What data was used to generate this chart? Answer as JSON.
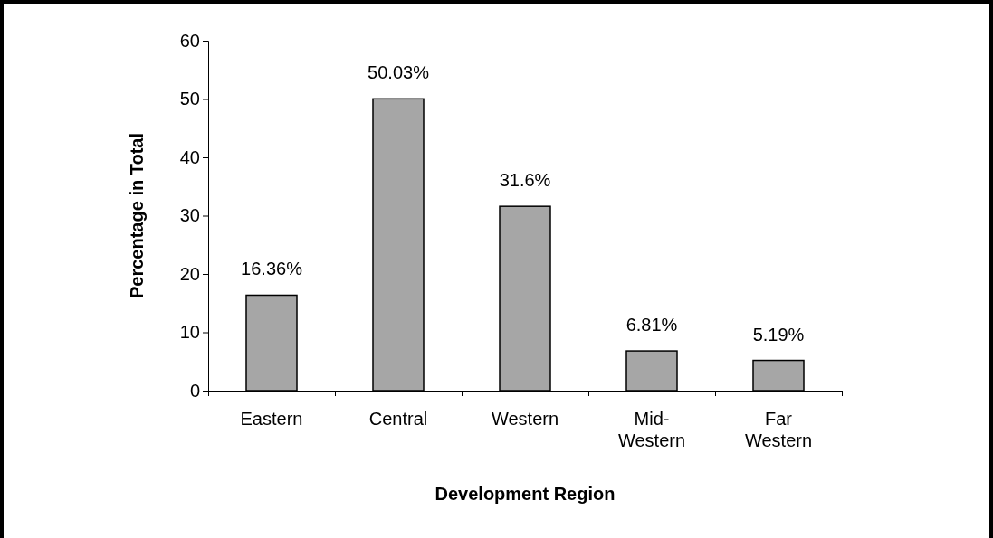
{
  "chart_data": {
    "type": "bar",
    "xlabel": "Development Region",
    "ylabel": "Percentage in Total",
    "categories": [
      "Eastern",
      "Central",
      "Western",
      "Mid-Western",
      "Far Western"
    ],
    "values": [
      16.36,
      50.03,
      31.6,
      6.81,
      5.19
    ],
    "value_labels": [
      "16.36%",
      "50.03%",
      "31.6%",
      "6.81%",
      "5.19%"
    ],
    "color": "#a6a6a6",
    "ylim": [
      0,
      60
    ],
    "yticks": [
      0,
      10,
      20,
      30,
      40,
      50,
      60
    ]
  }
}
